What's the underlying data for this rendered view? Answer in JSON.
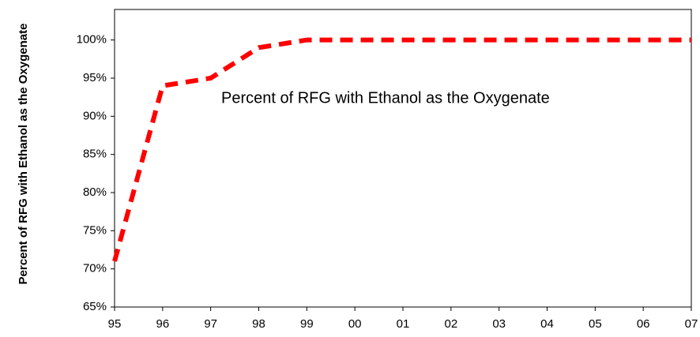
{
  "chart_data": {
    "type": "line",
    "ylabel": "Percent of RFG with Ethanol as the Oxygenate",
    "annotation": "Percent of RFG with Ethanol as the Oxygenate",
    "categories": [
      "95",
      "96",
      "97",
      "98",
      "99",
      "00",
      "01",
      "02",
      "03",
      "04",
      "05",
      "06",
      "07"
    ],
    "series": [
      {
        "name": "Percent of RFG with Ethanol as the Oxygenate",
        "color": "#ff0000",
        "values": [
          71,
          94,
          95,
          99,
          100,
          100,
          100,
          100,
          100,
          100,
          100,
          100,
          100
        ]
      }
    ],
    "ylim": [
      65,
      104
    ],
    "yticks": [
      {
        "value": 65,
        "label": "65%"
      },
      {
        "value": 70,
        "label": "70%"
      },
      {
        "value": 75,
        "label": "75%"
      },
      {
        "value": 80,
        "label": "80%"
      },
      {
        "value": 85,
        "label": "85%"
      },
      {
        "value": 90,
        "label": "90%"
      },
      {
        "value": 95,
        "label": "95%"
      },
      {
        "value": 100,
        "label": "100%"
      }
    ]
  }
}
